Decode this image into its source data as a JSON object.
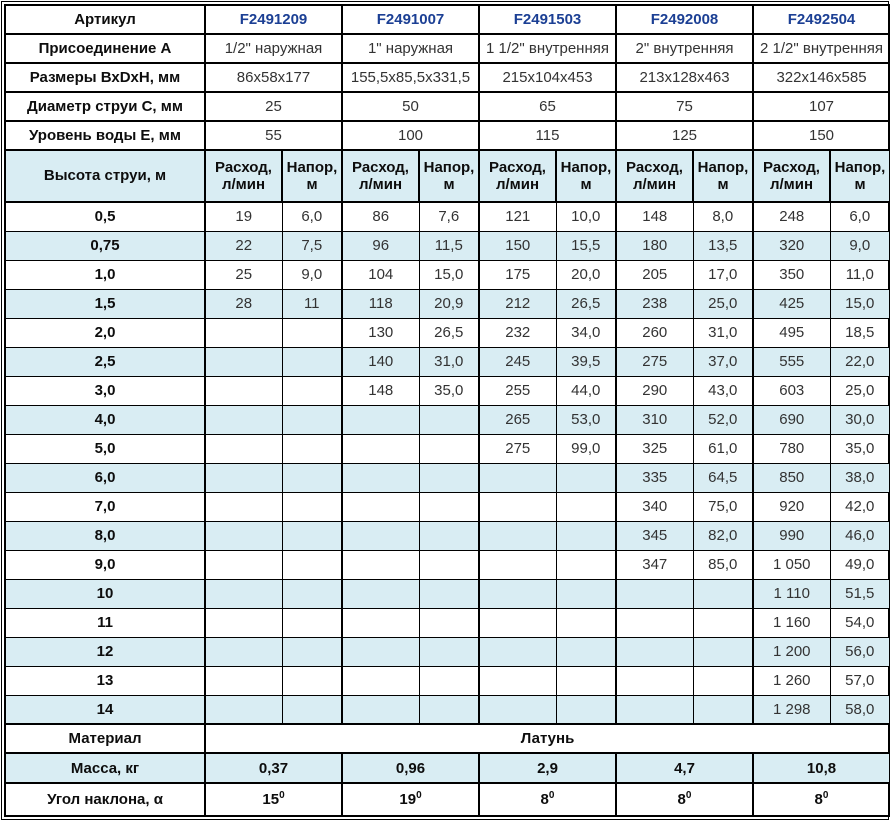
{
  "colors": {
    "accent_blue_text": "#1b3f94",
    "row_alt_bg": "#d9edf3",
    "border": "#000000"
  },
  "spec_rows": [
    {
      "label": "Артикул",
      "values": [
        "F2491209",
        "F2491007",
        "F2491503",
        "F2492008",
        "F2492504"
      ]
    },
    {
      "label": "Присоединение А",
      "values": [
        "1/2\" наружная",
        "1\" наружная",
        "1 1/2\" внутренняя",
        "2\" внутренняя",
        "2 1/2\" внутренняя"
      ]
    },
    {
      "label": "Размеры ВхDхН, мм",
      "values": [
        "86x58x177",
        "155,5x85,5x331,5",
        "215x104x453",
        "213x128x463",
        "322x146x585"
      ]
    },
    {
      "label": "Диаметр струи С, мм",
      "values": [
        "25",
        "50",
        "65",
        "75",
        "107"
      ]
    },
    {
      "label": "Уровень воды Е, мм",
      "values": [
        "55",
        "100",
        "115",
        "125",
        "150"
      ]
    }
  ],
  "jet_header": {
    "label": "Высота струи, м",
    "flow": "Расход,\nл/мин",
    "head": "Напор,\nм"
  },
  "jet_rows": [
    {
      "h": "0,5",
      "v": [
        "19",
        "6,0",
        "86",
        "7,6",
        "121",
        "10,0",
        "148",
        "8,0",
        "248",
        "6,0"
      ]
    },
    {
      "h": "0,75",
      "v": [
        "22",
        "7,5",
        "96",
        "11,5",
        "150",
        "15,5",
        "180",
        "13,5",
        "320",
        "9,0"
      ]
    },
    {
      "h": "1,0",
      "v": [
        "25",
        "9,0",
        "104",
        "15,0",
        "175",
        "20,0",
        "205",
        "17,0",
        "350",
        "11,0"
      ]
    },
    {
      "h": "1,5",
      "v": [
        "28",
        "11",
        "118",
        "20,9",
        "212",
        "26,5",
        "238",
        "25,0",
        "425",
        "15,0"
      ]
    },
    {
      "h": "2,0",
      "v": [
        "",
        "",
        "130",
        "26,5",
        "232",
        "34,0",
        "260",
        "31,0",
        "495",
        "18,5"
      ]
    },
    {
      "h": "2,5",
      "v": [
        "",
        "",
        "140",
        "31,0",
        "245",
        "39,5",
        "275",
        "37,0",
        "555",
        "22,0"
      ]
    },
    {
      "h": "3,0",
      "v": [
        "",
        "",
        "148",
        "35,0",
        "255",
        "44,0",
        "290",
        "43,0",
        "603",
        "25,0"
      ]
    },
    {
      "h": "4,0",
      "v": [
        "",
        "",
        "",
        "",
        "265",
        "53,0",
        "310",
        "52,0",
        "690",
        "30,0"
      ]
    },
    {
      "h": "5,0",
      "v": [
        "",
        "",
        "",
        "",
        "275",
        "99,0",
        "325",
        "61,0",
        "780",
        "35,0"
      ]
    },
    {
      "h": "6,0",
      "v": [
        "",
        "",
        "",
        "",
        "",
        "",
        "335",
        "64,5",
        "850",
        "38,0"
      ]
    },
    {
      "h": "7,0",
      "v": [
        "",
        "",
        "",
        "",
        "",
        "",
        "340",
        "75,0",
        "920",
        "42,0"
      ]
    },
    {
      "h": "8,0",
      "v": [
        "",
        "",
        "",
        "",
        "",
        "",
        "345",
        "82,0",
        "990",
        "46,0"
      ]
    },
    {
      "h": "9,0",
      "v": [
        "",
        "",
        "",
        "",
        "",
        "",
        "347",
        "85,0",
        "1 050",
        "49,0"
      ]
    },
    {
      "h": "10",
      "v": [
        "",
        "",
        "",
        "",
        "",
        "",
        "",
        "",
        "1 110",
        "51,5"
      ]
    },
    {
      "h": "11",
      "v": [
        "",
        "",
        "",
        "",
        "",
        "",
        "",
        "",
        "1 160",
        "54,0"
      ]
    },
    {
      "h": "12",
      "v": [
        "",
        "",
        "",
        "",
        "",
        "",
        "",
        "",
        "1 200",
        "56,0"
      ]
    },
    {
      "h": "13",
      "v": [
        "",
        "",
        "",
        "",
        "",
        "",
        "",
        "",
        "1 260",
        "57,0"
      ]
    },
    {
      "h": "14",
      "v": [
        "",
        "",
        "",
        "",
        "",
        "",
        "",
        "",
        "1 298",
        "58,0"
      ]
    }
  ],
  "material_row": {
    "label": "Материал",
    "value": "Латунь"
  },
  "mass_row": {
    "label": "Масса, кг",
    "values": [
      "0,37",
      "0,96",
      "2,9",
      "4,7",
      "10,8"
    ]
  },
  "angle_row": {
    "label": "Угол наклона, α",
    "values": [
      {
        "base": "15",
        "sup": "0"
      },
      {
        "base": "19",
        "sup": "0"
      },
      {
        "base": "8",
        "sup": "0"
      },
      {
        "base": "8",
        "sup": "0"
      },
      {
        "base": "8",
        "sup": "0"
      }
    ]
  }
}
